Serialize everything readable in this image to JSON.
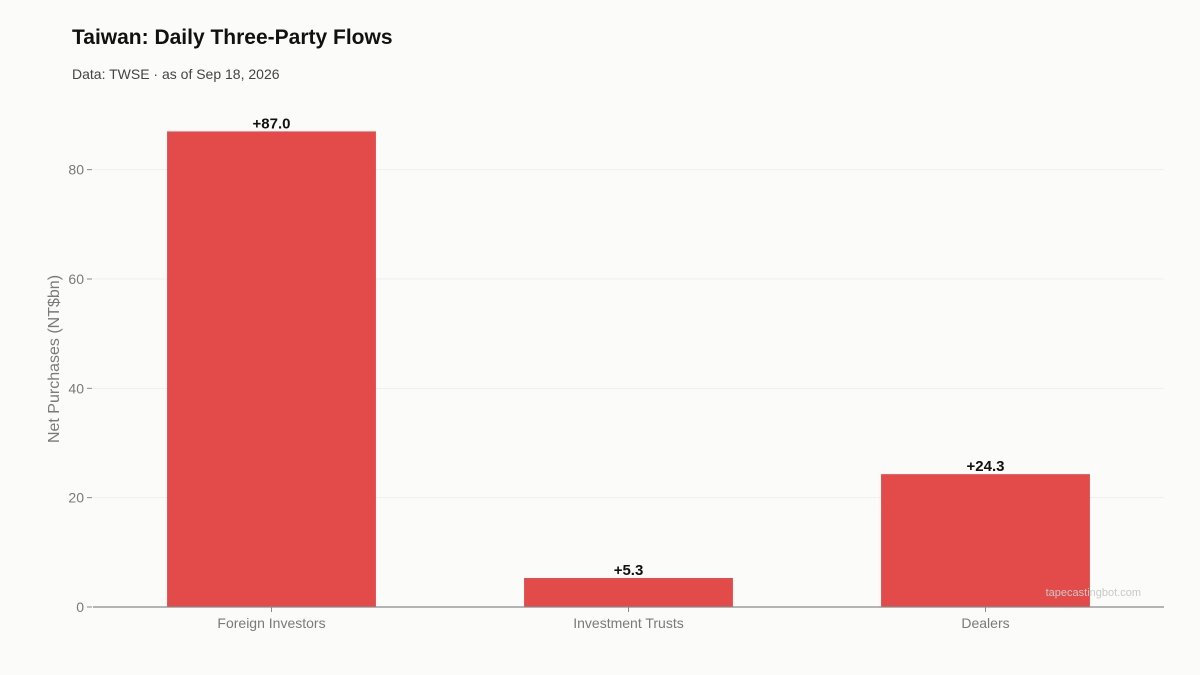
{
  "title": "Taiwan: Daily Three-Party Flows",
  "subtitle": "Data: TWSE · as of Sep 18, 2026",
  "watermark": "tapecastingbot.com",
  "chart_data": {
    "type": "bar",
    "categories": [
      "Foreign Investors",
      "Investment Trusts",
      "Dealers"
    ],
    "values": [
      87.0,
      5.3,
      24.3
    ],
    "value_labels": [
      "+87.0",
      "+5.3",
      "+24.3"
    ],
    "title": "Taiwan: Daily Three-Party Flows",
    "subtitle": "Data: TWSE · as of Sep 18, 2026",
    "xlabel": "",
    "ylabel": "Net Purchases (NT$bn)",
    "ylim": [
      0,
      90
    ],
    "yticks": [
      0,
      20,
      40,
      60,
      80
    ],
    "grid": true,
    "colors": {
      "bar": "#e34a4a",
      "grid": "#efefec",
      "axis": "#8a8a8a"
    }
  }
}
